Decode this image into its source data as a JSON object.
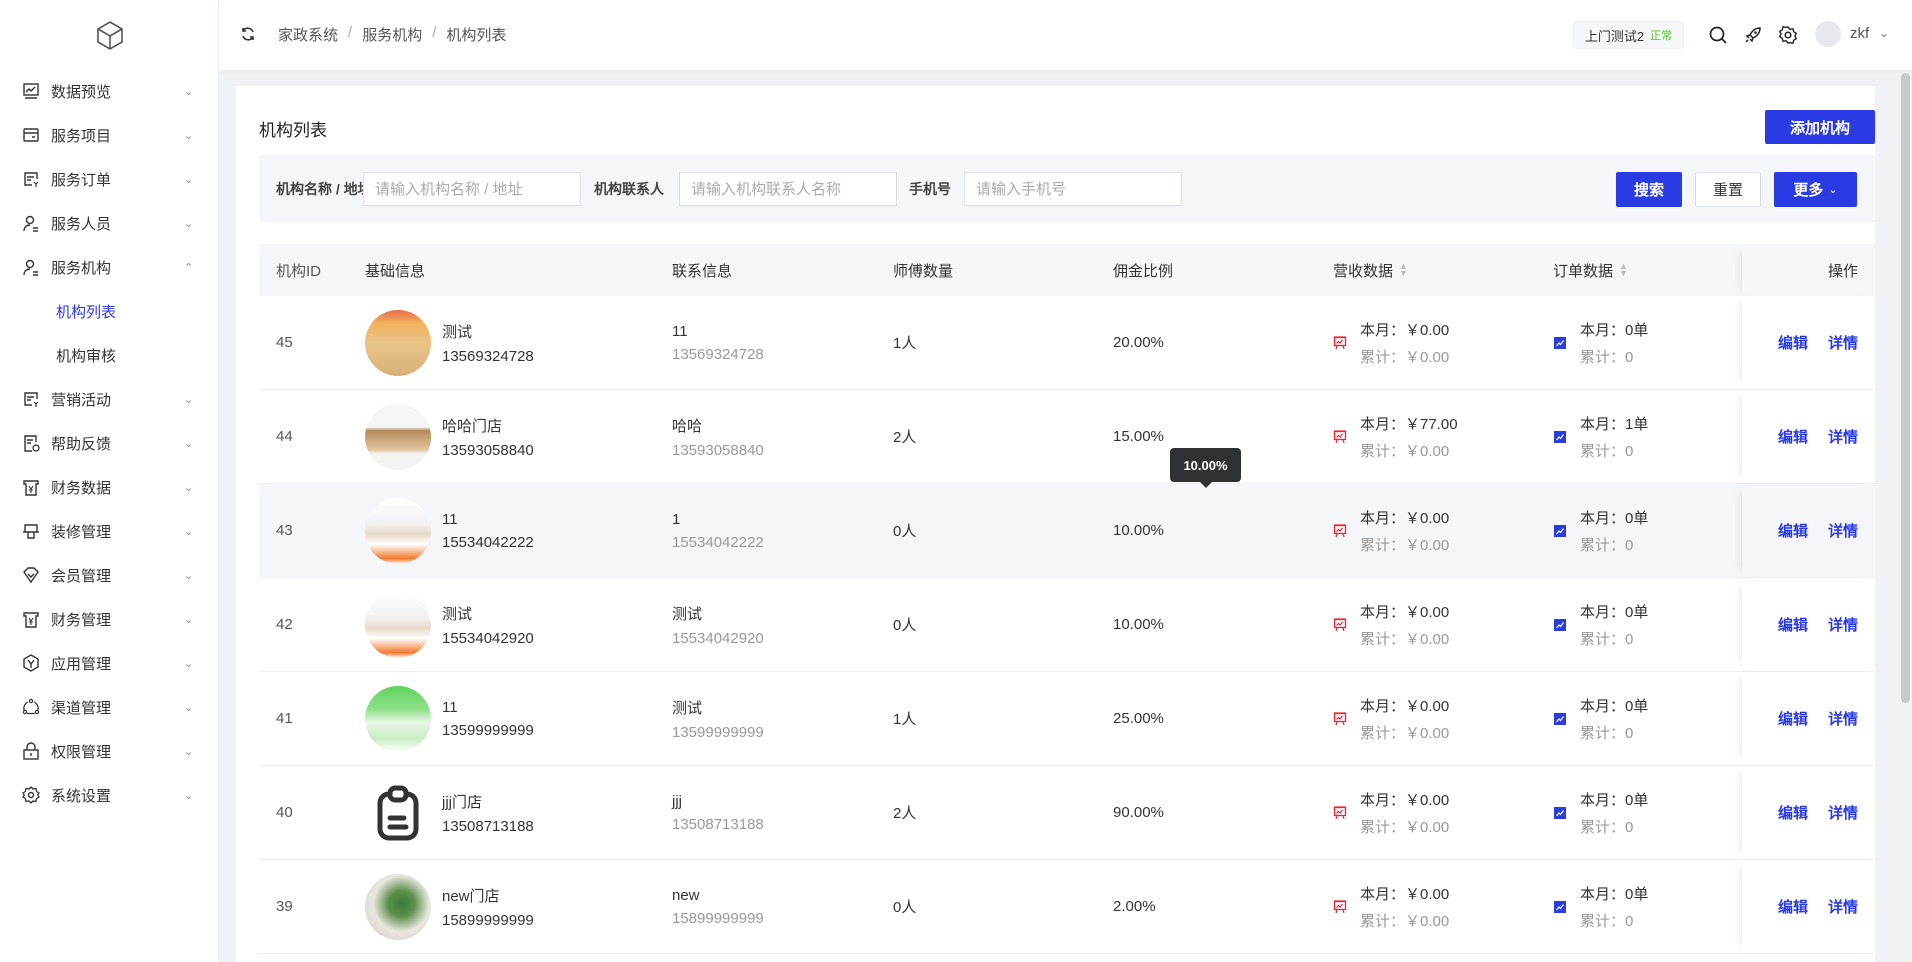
{
  "sidebar": {
    "items": [
      {
        "label": "数据预览",
        "icon": "chart-icon",
        "expanded": false
      },
      {
        "label": "服务项目",
        "icon": "wallet-icon",
        "expanded": false
      },
      {
        "label": "服务订单",
        "icon": "order-icon",
        "expanded": false
      },
      {
        "label": "服务人员",
        "icon": "user-icon",
        "expanded": false
      },
      {
        "label": "服务机构",
        "icon": "user-icon",
        "expanded": true
      },
      {
        "label": "机构列表",
        "sub": true,
        "active": true
      },
      {
        "label": "机构审核",
        "sub": true
      },
      {
        "label": "营销活动",
        "icon": "order-icon",
        "expanded": false
      },
      {
        "label": "帮助反馈",
        "icon": "feedback-icon",
        "expanded": false
      },
      {
        "label": "财务数据",
        "icon": "finance-icon",
        "expanded": false
      },
      {
        "label": "装修管理",
        "icon": "decor-icon",
        "expanded": false
      },
      {
        "label": "会员管理",
        "icon": "diamond-icon",
        "expanded": false
      },
      {
        "label": "财务管理",
        "icon": "finance-icon",
        "expanded": false
      },
      {
        "label": "应用管理",
        "icon": "app-icon",
        "expanded": false
      },
      {
        "label": "渠道管理",
        "icon": "channel-icon",
        "expanded": false
      },
      {
        "label": "权限管理",
        "icon": "lock-icon",
        "expanded": false
      },
      {
        "label": "系统设置",
        "icon": "gear-icon",
        "expanded": false
      }
    ]
  },
  "header": {
    "breadcrumb": [
      "家政系统",
      "服务机构",
      "机构列表"
    ],
    "store_name": "上门测试2",
    "store_status": "正常",
    "username": "zkf"
  },
  "page": {
    "title": "机构列表",
    "add_button": "添加机构"
  },
  "filter": {
    "name_label": "机构名称 / 地址",
    "name_placeholder": "请输入机构名称 / 地址",
    "contact_label": "机构联系人",
    "contact_placeholder": "请输入机构联系人名称",
    "phone_label": "手机号",
    "phone_placeholder": "请输入手机号",
    "search": "搜索",
    "reset": "重置",
    "more": "更多"
  },
  "table": {
    "columns": [
      "机构ID",
      "基础信息",
      "联系信息",
      "师傅数量",
      "佣金比例",
      "营收数据",
      "订单数据",
      "操作"
    ],
    "rows": [
      {
        "id": "45",
        "name": "测试",
        "phone": "13569324728",
        "contact": "11",
        "contact_phone": "13569324728",
        "masters": "1人",
        "commission": "20.00%",
        "rev_month": "本月：￥0.00",
        "rev_total": "累计：￥0.00",
        "ord_month": "本月：0单",
        "ord_total": "累计：0",
        "edit": "编辑",
        "detail": "详情"
      },
      {
        "id": "44",
        "name": "哈哈门店",
        "phone": "13593058840",
        "contact": "哈哈",
        "contact_phone": "13593058840",
        "masters": "2人",
        "commission": "15.00%",
        "rev_month": "本月：￥77.00",
        "rev_total": "累计：￥0.00",
        "ord_month": "本月：1单",
        "ord_total": "累计：0",
        "edit": "编辑",
        "detail": "详情"
      },
      {
        "id": "43",
        "name": "11",
        "phone": "15534042222",
        "contact": "1",
        "contact_phone": "15534042222",
        "masters": "0人",
        "commission": "10.00%",
        "rev_month": "本月：￥0.00",
        "rev_total": "累计：￥0.00",
        "ord_month": "本月：0单",
        "ord_total": "累计：0",
        "edit": "编辑",
        "detail": "详情"
      },
      {
        "id": "42",
        "name": "测试",
        "phone": "15534042920",
        "contact": "测试",
        "contact_phone": "15534042920",
        "masters": "0人",
        "commission": "10.00%",
        "rev_month": "本月：￥0.00",
        "rev_total": "累计：￥0.00",
        "ord_month": "本月：0单",
        "ord_total": "累计：0",
        "edit": "编辑",
        "detail": "详情"
      },
      {
        "id": "41",
        "name": "11",
        "phone": "13599999999",
        "contact": "测试",
        "contact_phone": "13599999999",
        "masters": "1人",
        "commission": "25.00%",
        "rev_month": "本月：￥0.00",
        "rev_total": "累计：￥0.00",
        "ord_month": "本月：0单",
        "ord_total": "累计：0",
        "edit": "编辑",
        "detail": "详情"
      },
      {
        "id": "40",
        "name": "jjj门店",
        "phone": "13508713188",
        "contact": "jjj",
        "contact_phone": "13508713188",
        "masters": "2人",
        "commission": "90.00%",
        "rev_month": "本月：￥0.00",
        "rev_total": "累计：￥0.00",
        "ord_month": "本月：0单",
        "ord_total": "累计：0",
        "edit": "编辑",
        "detail": "详情"
      },
      {
        "id": "39",
        "name": "new门店",
        "phone": "15899999999",
        "contact": "new",
        "contact_phone": "15899999999",
        "masters": "0人",
        "commission": "2.00%",
        "rev_month": "本月：￥0.00",
        "rev_total": "累计：￥0.00",
        "ord_month": "本月：0单",
        "ord_total": "累计：0",
        "edit": "编辑",
        "detail": "详情"
      }
    ]
  },
  "tooltip": "10.00%",
  "colors": {
    "primary": "#2b3be3",
    "revenue_icon": "#f5222d",
    "status_ok": "#52c41a"
  }
}
